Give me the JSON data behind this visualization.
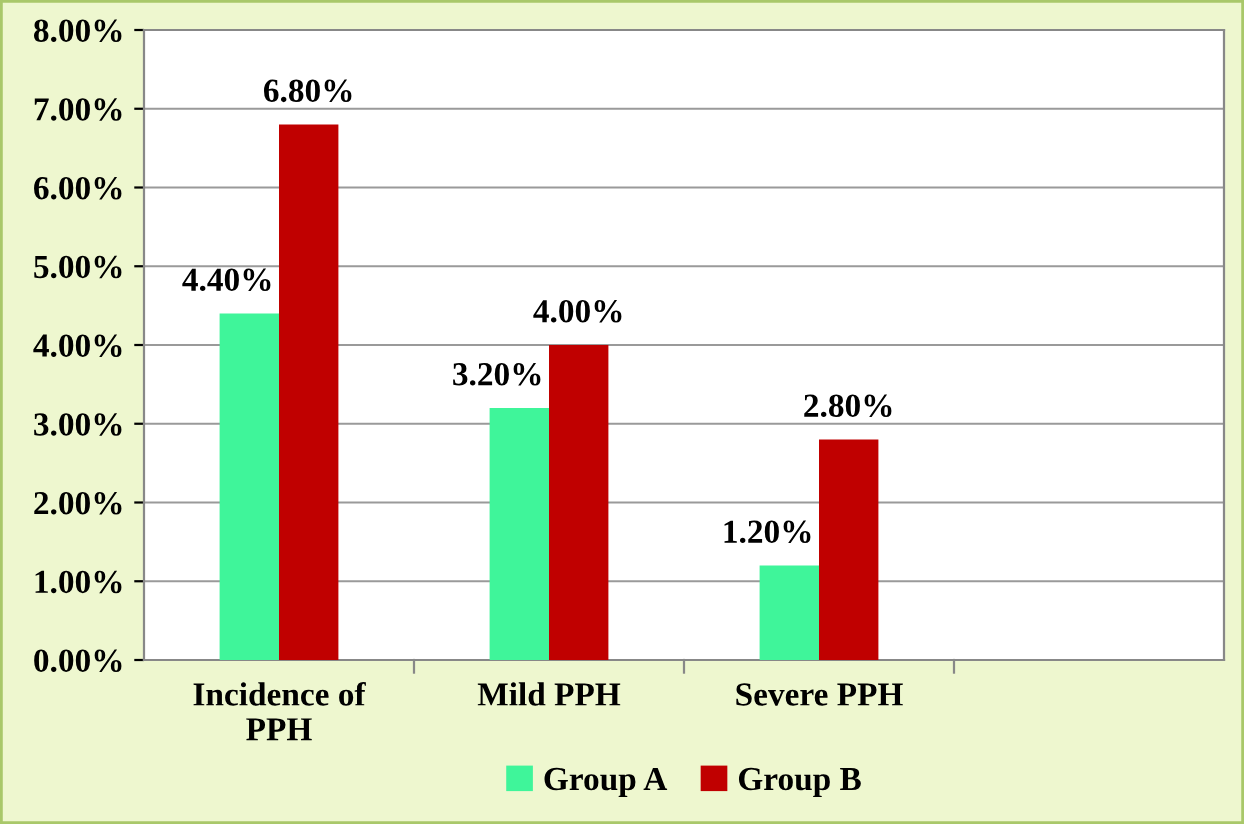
{
  "chart_data": {
    "type": "bar",
    "categories": [
      "Incidence of\nPPH",
      "Mild PPH",
      "Severe PPH",
      null
    ],
    "series": [
      {
        "name": "Group A",
        "color": "#3ff59a",
        "values": [
          4.4,
          3.2,
          1.2,
          null
        ],
        "value_labels": [
          "4.40%",
          "3.20%",
          "1.20%",
          null
        ]
      },
      {
        "name": "Group B",
        "color": "#c00000",
        "values": [
          6.8,
          4.0,
          2.8,
          null
        ],
        "value_labels": [
          "6.80%",
          "4.00%",
          "2.80%",
          null
        ]
      }
    ],
    "ylim": [
      0,
      8
    ],
    "yticks": [
      {
        "value": 0,
        "label": "0.00%"
      },
      {
        "value": 1,
        "label": "1.00%"
      },
      {
        "value": 2,
        "label": "2.00%"
      },
      {
        "value": 3,
        "label": "3.00%"
      },
      {
        "value": 4,
        "label": "4.00%"
      },
      {
        "value": 5,
        "label": "5.00%"
      },
      {
        "value": 6,
        "label": "6.00%"
      },
      {
        "value": 7,
        "label": "7.00%"
      },
      {
        "value": 8,
        "label": "8.00%"
      }
    ],
    "grid": "y",
    "legend": "bottom"
  }
}
